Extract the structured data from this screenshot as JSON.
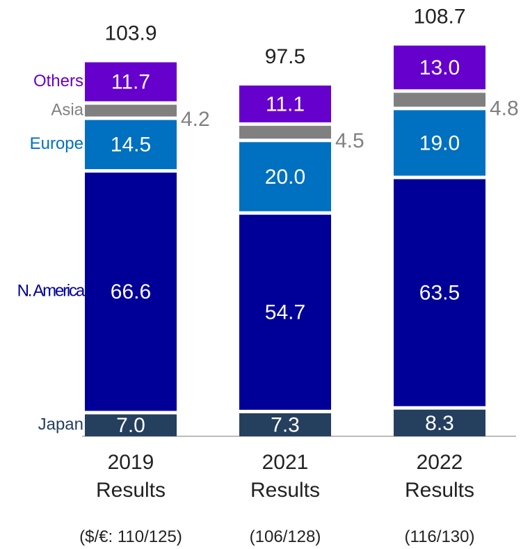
{
  "chart_data": {
    "type": "stacked_bar",
    "categories": [
      "2019 Results",
      "2021 Results",
      "2022 Results"
    ],
    "notes": [
      "($/€: 110/125)",
      "(106/128)",
      "(116/130)"
    ],
    "totals": [
      103.9,
      97.5,
      108.7
    ],
    "series": [
      {
        "name": "Japan",
        "color": "#253f5e",
        "label_color": "#ffffff",
        "values": [
          7.0,
          7.3,
          8.3
        ],
        "value_labels": [
          "7.0",
          "7.3",
          "8.3"
        ]
      },
      {
        "name": "N. America",
        "color": "#000099",
        "label_color": "#ffffff",
        "values": [
          66.6,
          54.7,
          63.5
        ],
        "value_labels": [
          "66.6",
          "54.7",
          "63.5"
        ]
      },
      {
        "name": "Europe",
        "color": "#0070c0",
        "label_color": "#ffffff",
        "values": [
          14.5,
          20.0,
          19.0
        ],
        "value_labels": [
          "14.5",
          "20.0",
          "19.0"
        ]
      },
      {
        "name": "Asia",
        "color": "#808080",
        "label_color": "#808080",
        "label_position": "outside",
        "values": [
          4.2,
          4.5,
          4.8
        ],
        "value_labels": [
          "4.2",
          "4.5",
          "4.8"
        ]
      },
      {
        "name": "Others",
        "color": "#6600cc",
        "label_color": "#ffffff",
        "values": [
          11.7,
          11.1,
          13.0
        ],
        "value_labels": [
          "11.7",
          "11.1",
          "13.0"
        ]
      }
    ]
  }
}
